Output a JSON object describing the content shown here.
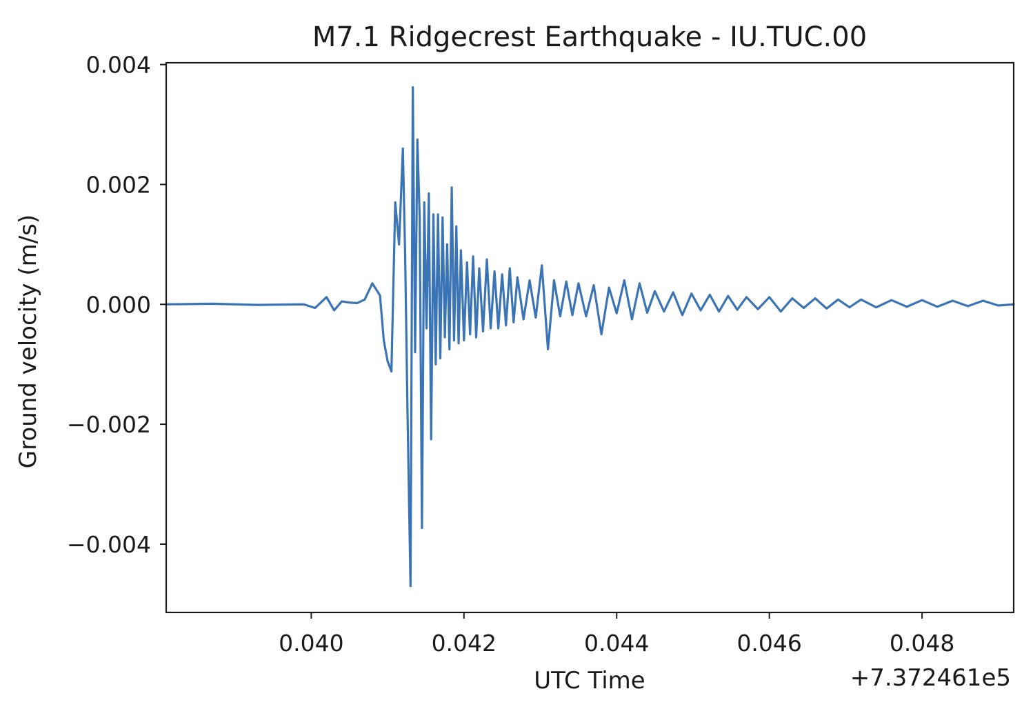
{
  "chart_data": {
    "type": "line",
    "title": "M7.1 Ridgecrest Earthquake - IU.TUC.00",
    "xlabel": "UTC Time",
    "ylabel": "Ground velocity (m/s)",
    "x_offset_label": "+7.372461e5",
    "xlim": [
      0.0381,
      0.0492
    ],
    "ylim": [
      -0.00514,
      0.00403
    ],
    "x_ticks": [
      0.04,
      0.042,
      0.044,
      0.046,
      0.048
    ],
    "x_tick_labels": [
      "0.040",
      "0.042",
      "0.044",
      "0.046",
      "0.048"
    ],
    "y_ticks": [
      -0.004,
      -0.002,
      0.0,
      0.002,
      0.004
    ],
    "y_tick_labels": [
      "−0.004",
      "−0.002",
      "0.000",
      "0.002",
      "0.004"
    ],
    "grid": false,
    "line_color": "#3a74b4",
    "series": [
      {
        "x": [
          0.0381,
          0.0387,
          0.0393,
          0.0399,
          0.04005,
          0.0402,
          0.0403,
          0.0404,
          0.0405,
          0.0406,
          0.0407,
          0.0408,
          0.0409,
          0.04095,
          0.041,
          0.04105,
          0.0411,
          0.04115,
          0.0412,
          0.04123,
          0.04126,
          0.0413,
          0.04133,
          0.04136,
          0.04139,
          0.04142,
          0.04145,
          0.04148,
          0.04151,
          0.04154,
          0.04157,
          0.0416,
          0.04163,
          0.04166,
          0.04169,
          0.04172,
          0.04175,
          0.04178,
          0.04181,
          0.04184,
          0.04187,
          0.0419,
          0.04193,
          0.04196,
          0.042,
          0.04204,
          0.04208,
          0.04212,
          0.04216,
          0.0422,
          0.04225,
          0.0423,
          0.04235,
          0.0424,
          0.04245,
          0.0425,
          0.04255,
          0.0426,
          0.04265,
          0.0427,
          0.04278,
          0.04286,
          0.04294,
          0.04302,
          0.0431,
          0.04318,
          0.04326,
          0.04334,
          0.04342,
          0.0435,
          0.0436,
          0.0437,
          0.0438,
          0.0439,
          0.044,
          0.0441,
          0.0442,
          0.0443,
          0.0444,
          0.0445,
          0.04462,
          0.04474,
          0.04486,
          0.04498,
          0.0451,
          0.04522,
          0.04534,
          0.04546,
          0.04558,
          0.0457,
          0.04585,
          0.046,
          0.04615,
          0.0463,
          0.04645,
          0.0466,
          0.04675,
          0.0469,
          0.04705,
          0.0472,
          0.0474,
          0.0476,
          0.0478,
          0.048,
          0.0482,
          0.0484,
          0.0486,
          0.0488,
          0.049,
          0.0492
        ],
        "y": [
          0.0,
          1e-05,
          -1e-05,
          0.0,
          -6e-05,
          0.00012,
          -0.0001,
          5e-05,
          3e-05,
          2e-05,
          8e-05,
          0.00035,
          0.00015,
          -0.0006,
          -0.00095,
          -0.00112,
          0.0017,
          0.001,
          0.0026,
          0.0008,
          -0.00175,
          -0.0047,
          0.00362,
          -0.0008,
          0.00275,
          0.00145,
          -0.00373,
          0.0017,
          -0.0004,
          0.00185,
          -0.00225,
          0.0015,
          -0.001,
          0.0015,
          -0.0009,
          0.00145,
          -0.00055,
          0.001,
          -0.00075,
          0.00195,
          -0.0006,
          0.0013,
          -0.00065,
          0.0009,
          -0.0006,
          0.0007,
          -0.0005,
          0.0008,
          -0.00055,
          0.0006,
          -0.00045,
          0.00075,
          -0.0004,
          0.00055,
          -0.0004,
          0.0005,
          -0.00035,
          0.0006,
          -0.0003,
          0.00045,
          -0.00025,
          0.0004,
          -0.00022,
          0.00065,
          -0.00075,
          0.0004,
          -0.0002,
          0.00038,
          -0.00018,
          0.00035,
          -0.0002,
          0.00032,
          -0.0005,
          0.00028,
          -0.00015,
          0.0004,
          -0.00025,
          0.00035,
          -0.00014,
          0.00022,
          -0.00012,
          0.0002,
          -0.00018,
          0.00018,
          -0.0001,
          0.00016,
          -0.00012,
          0.00014,
          -9e-05,
          0.00012,
          -8e-05,
          0.00012,
          -0.00012,
          0.0001,
          -6e-05,
          0.0001,
          -7e-05,
          8e-05,
          -5e-05,
          8e-05,
          -5e-05,
          7e-05,
          -4e-05,
          7e-05,
          -4e-05,
          6e-05,
          -3e-05,
          6e-05,
          -2e-05,
          0.0
        ]
      }
    ]
  }
}
